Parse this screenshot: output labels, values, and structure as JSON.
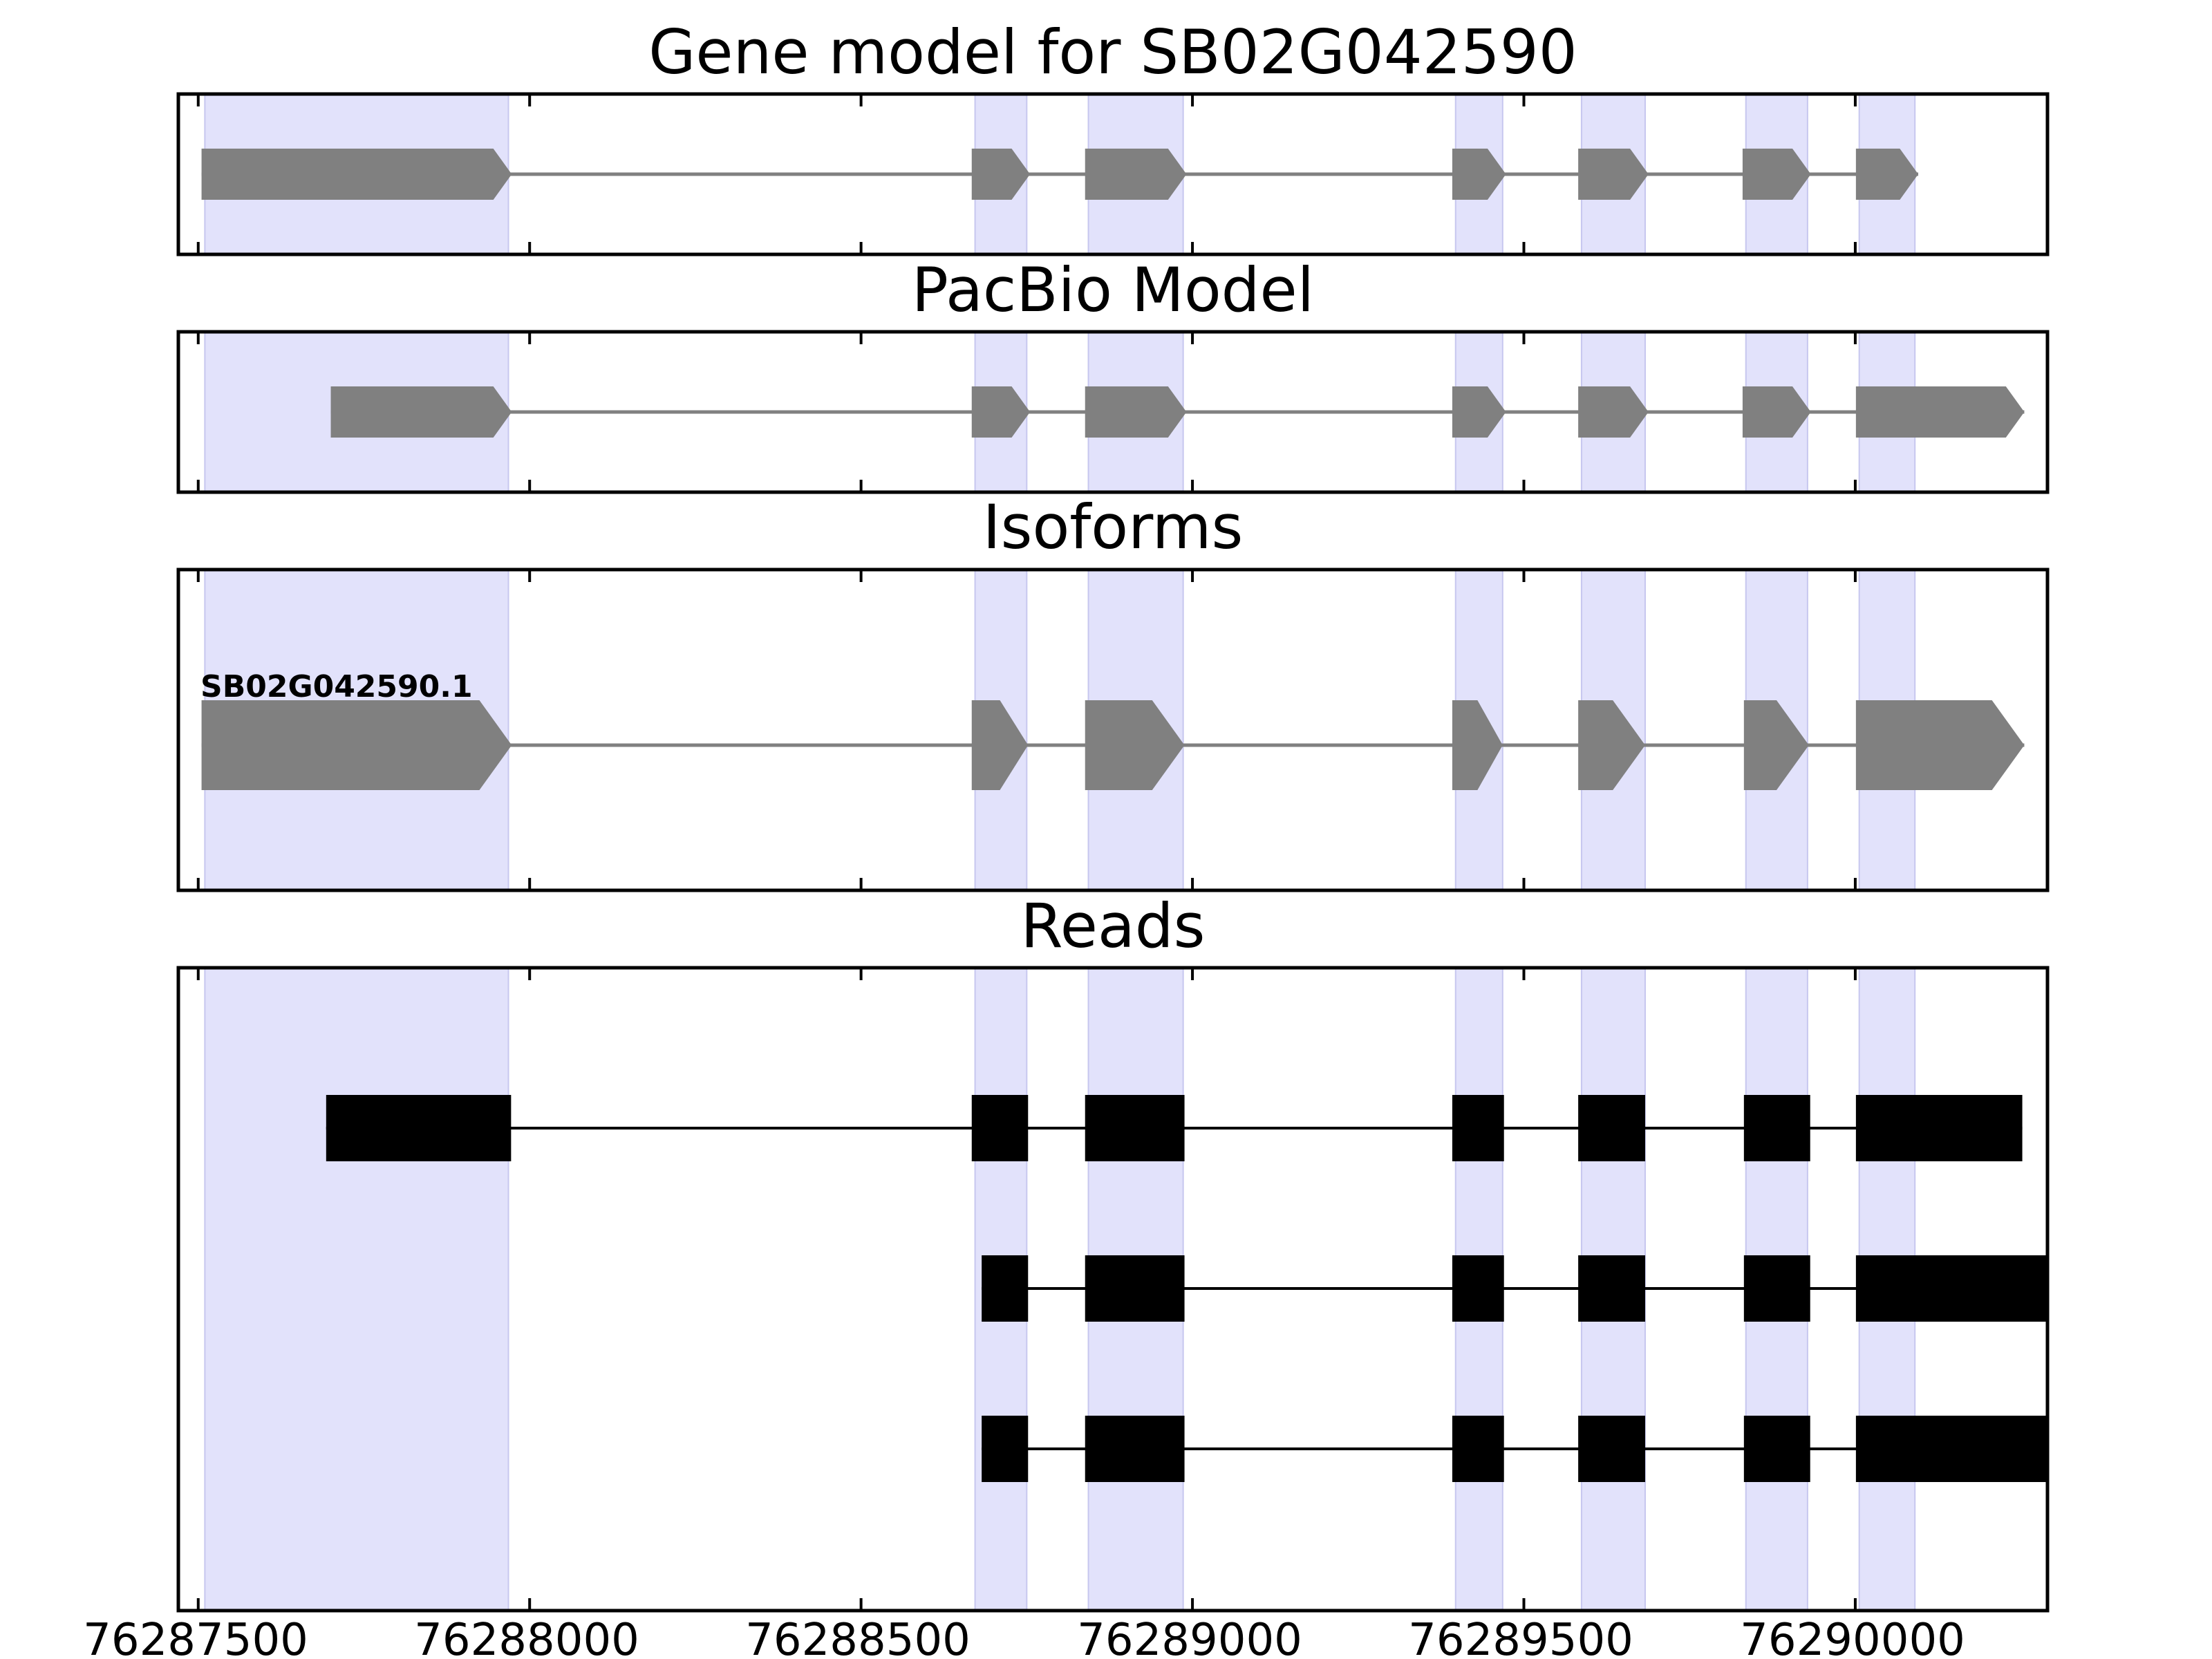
{
  "chart_data": {
    "type": "gene-track",
    "xlim": [
      76287470,
      76290290
    ],
    "x_ticks": [
      76287500,
      76288000,
      76288500,
      76289000,
      76289500,
      76290000
    ],
    "x_tick_labels": [
      "76287500",
      "76288000",
      "76288500",
      "76289000",
      "76289500",
      "76290000"
    ],
    "colors": {
      "highlight": "#e2e2fb",
      "highlight_edge": "#c7c7ef",
      "exon": "#808080",
      "read": "#000000",
      "axis": "#000000"
    },
    "highlight_regions": [
      [
        76287510,
        76287968
      ],
      [
        76288672,
        76288750
      ],
      [
        76288843,
        76288986
      ],
      [
        76289397,
        76289468
      ],
      [
        76289587,
        76289683
      ],
      [
        76289835,
        76289928
      ],
      [
        76290006,
        76290090
      ]
    ],
    "panels": [
      {
        "title": "Gene model for SB02G042590",
        "kind": "model",
        "tracks": [
          {
            "label": "",
            "strand": "+",
            "exons": [
              [
                76287505,
                76287973
              ],
              [
                76288667,
                76288755
              ],
              [
                76288838,
                76288991
              ],
              [
                76289392,
                76289473
              ],
              [
                76289582,
                76289688
              ],
              [
                76289830,
                76289933
              ],
              [
                76290001,
                76290095
              ]
            ]
          }
        ]
      },
      {
        "title": "PacBio Model",
        "kind": "model",
        "tracks": [
          {
            "label": "",
            "strand": "+",
            "exons": [
              [
                76287700,
                76287973
              ],
              [
                76288667,
                76288755
              ],
              [
                76288838,
                76288991
              ],
              [
                76289392,
                76289473
              ],
              [
                76289582,
                76289688
              ],
              [
                76289830,
                76289933
              ],
              [
                76290001,
                76290255
              ]
            ]
          }
        ]
      },
      {
        "title": "Isoforms",
        "kind": "model",
        "tracks": [
          {
            "label": "SB02G042590.1",
            "strand": "+",
            "exons": [
              [
                76287505,
                76287973
              ],
              [
                76288667,
                76288752
              ],
              [
                76288838,
                76288988
              ],
              [
                76289392,
                76289468
              ],
              [
                76289582,
                76289683
              ],
              [
                76289832,
                76289930
              ],
              [
                76290001,
                76290255
              ]
            ]
          }
        ]
      },
      {
        "title": "Reads",
        "kind": "reads",
        "tracks": [
          {
            "label": "",
            "exons": [
              [
                76287693,
                76287972
              ],
              [
                76288667,
                76288752
              ],
              [
                76288838,
                76288988
              ],
              [
                76289392,
                76289470
              ],
              [
                76289582,
                76289683
              ],
              [
                76289832,
                76289932
              ],
              [
                76290001,
                76290252
              ]
            ]
          },
          {
            "label": "",
            "exons": [
              [
                76288682,
                76288752
              ],
              [
                76288838,
                76288988
              ],
              [
                76289392,
                76289470
              ],
              [
                76289582,
                76289683
              ],
              [
                76289832,
                76289932
              ],
              [
                76290001,
                76290290
              ]
            ]
          },
          {
            "label": "",
            "exons": [
              [
                76288682,
                76288752
              ],
              [
                76288838,
                76288988
              ],
              [
                76289392,
                76289470
              ],
              [
                76289582,
                76289683
              ],
              [
                76289832,
                76289932
              ],
              [
                76290001,
                76290290
              ]
            ]
          }
        ]
      }
    ]
  }
}
